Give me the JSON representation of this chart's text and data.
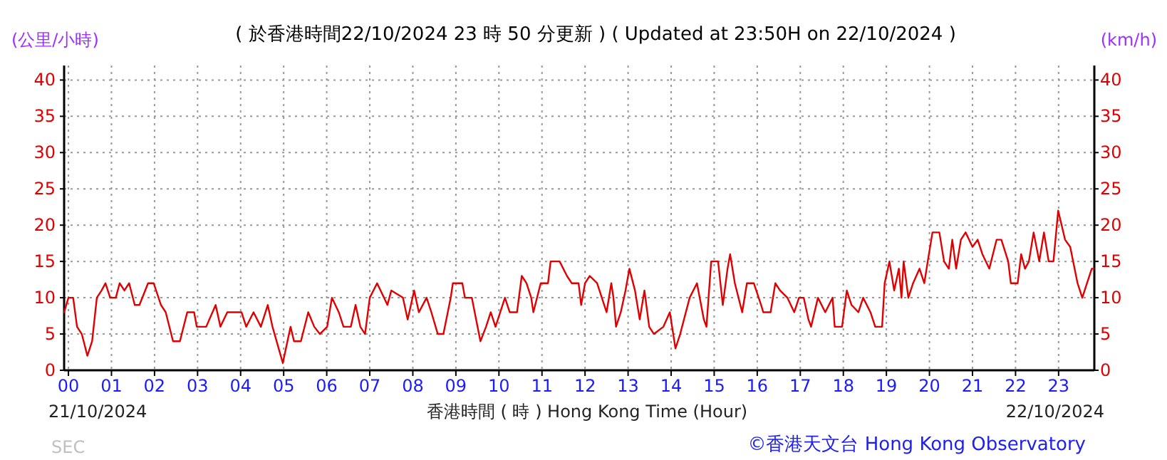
{
  "chart_data": {
    "type": "line",
    "title": "( 於香港時間22/10/2024 23 時 50 分更新 ) ( Updated at 23:50H on 22/10/2024 )",
    "ylabel": "(公里/小時)",
    "y2label": "(km/h)",
    "xlabel": "香港時間 ( 時 ) Hong Kong Time (Hour)",
    "annotations": [
      "21/10/2024",
      "22/10/2024",
      "SEC",
      "©香港天文台 Hong Kong Observatory"
    ],
    "xlim": [
      -0.1,
      23.83
    ],
    "ylim": [
      0,
      42
    ],
    "y2lim": [
      0,
      42
    ],
    "xticks": [
      {
        "value": 0,
        "label": "00"
      },
      {
        "value": 1,
        "label": "01"
      },
      {
        "value": 2,
        "label": "02"
      },
      {
        "value": 3,
        "label": "03"
      },
      {
        "value": 4,
        "label": "04"
      },
      {
        "value": 5,
        "label": "05"
      },
      {
        "value": 6,
        "label": "06"
      },
      {
        "value": 7,
        "label": "07"
      },
      {
        "value": 8,
        "label": "08"
      },
      {
        "value": 9,
        "label": "09"
      },
      {
        "value": 10,
        "label": "10"
      },
      {
        "value": 11,
        "label": "11"
      },
      {
        "value": 12,
        "label": "12"
      },
      {
        "value": 13,
        "label": "13"
      },
      {
        "value": 14,
        "label": "14"
      },
      {
        "value": 15,
        "label": "15"
      },
      {
        "value": 16,
        "label": "16"
      },
      {
        "value": 17,
        "label": "17"
      },
      {
        "value": 18,
        "label": "18"
      },
      {
        "value": 19,
        "label": "19"
      },
      {
        "value": 20,
        "label": "20"
      },
      {
        "value": 21,
        "label": "21"
      },
      {
        "value": 22,
        "label": "22"
      },
      {
        "value": 23,
        "label": "23"
      }
    ],
    "yticks": [
      0,
      5,
      10,
      15,
      20,
      25,
      30,
      35,
      40
    ],
    "y2ticks": [
      0,
      5,
      10,
      15,
      20,
      25,
      30,
      35,
      40
    ],
    "grid": true,
    "marker": "none",
    "line_style": "solid",
    "series": [
      {
        "color": "#e00000",
        "x": [
          -0.1,
          0,
          0.11,
          0.2,
          0.31,
          0.44,
          0.55,
          0.66,
          0.77,
          0.86,
          0.97,
          1.1,
          1.19,
          1.3,
          1.41,
          1.54,
          1.65,
          1.85,
          1.98,
          2.15,
          2.26,
          2.43,
          2.59,
          2.76,
          2.92,
          2.98,
          3.2,
          3.42,
          3.53,
          3.69,
          3.86,
          4.02,
          4.13,
          4.3,
          4.47,
          4.63,
          4.74,
          4.98,
          5.16,
          5.24,
          5.4,
          5.57,
          5.71,
          5.84,
          6.01,
          6.12,
          6.28,
          6.39,
          6.56,
          6.67,
          6.78,
          6.89,
          7.0,
          7.17,
          7.33,
          7.41,
          7.5,
          7.77,
          7.88,
          8.03,
          8.14,
          8.32,
          8.43,
          8.58,
          8.71,
          8.88,
          8.93,
          9.15,
          9.21,
          9.37,
          9.57,
          9.7,
          9.81,
          9.92,
          10.14,
          10.25,
          10.42,
          10.53,
          10.64,
          10.75,
          10.8,
          10.97,
          11.14,
          11.2,
          11.41,
          11.58,
          11.69,
          11.85,
          11.91,
          12.0,
          12.11,
          12.28,
          12.39,
          12.5,
          12.61,
          12.66,
          12.72,
          12.83,
          12.94,
          13.03,
          13.16,
          13.27,
          13.38,
          13.49,
          13.6,
          13.82,
          13.97,
          14.1,
          14.21,
          14.43,
          14.6,
          14.76,
          14.82,
          14.93,
          15.09,
          15.2,
          15.31,
          15.37,
          15.48,
          15.65,
          15.76,
          15.92,
          16.09,
          16.14,
          16.31,
          16.42,
          16.53,
          16.7,
          16.86,
          16.97,
          17.08,
          17.19,
          17.25,
          17.41,
          17.58,
          17.75,
          17.8,
          17.97,
          18.08,
          18.19,
          18.35,
          18.46,
          18.63,
          18.74,
          18.9,
          18.96,
          19.07,
          19.18,
          19.29,
          19.35,
          19.4,
          19.51,
          19.62,
          19.77,
          19.88,
          19.96,
          20.07,
          20.23,
          20.34,
          20.45,
          20.53,
          20.62,
          20.73,
          20.84,
          21.0,
          21.12,
          21.23,
          21.39,
          21.56,
          21.67,
          21.83,
          21.89,
          22.05,
          22.13,
          22.22,
          22.31,
          22.42,
          22.55,
          22.66,
          22.77,
          22.88,
          22.99,
          23.15,
          23.27,
          23.44,
          23.55,
          23.66,
          23.77,
          23.82
        ],
        "values": [
          8,
          10,
          10,
          6,
          5,
          2,
          4,
          10,
          11,
          12,
          10,
          10,
          12,
          11,
          12,
          9,
          9,
          12,
          12,
          9,
          8,
          4,
          4,
          8,
          8,
          6,
          6,
          9,
          6,
          8,
          8,
          8,
          6,
          8,
          6,
          9,
          6,
          1,
          6,
          4,
          4,
          8,
          6,
          5,
          6,
          10,
          8,
          6,
          6,
          9,
          6,
          5,
          10,
          12,
          10,
          9,
          11,
          10,
          7,
          11,
          8,
          10,
          8,
          5,
          5,
          10,
          12,
          12,
          10,
          10,
          4,
          6,
          8,
          6,
          10,
          8,
          8,
          13,
          12,
          10,
          8,
          12,
          12,
          15,
          15,
          13,
          12,
          12,
          9,
          12,
          13,
          12,
          10,
          8,
          12,
          10,
          6,
          8,
          11,
          14,
          11,
          7,
          11,
          6,
          5,
          6,
          8,
          3,
          5,
          10,
          12,
          7,
          6,
          15,
          15,
          9,
          14,
          16,
          12,
          8,
          12,
          12,
          9,
          8,
          8,
          12,
          11,
          10,
          8,
          10,
          10,
          7,
          6,
          10,
          8,
          10,
          6,
          6,
          11,
          9,
          8,
          10,
          8,
          6,
          6,
          12,
          15,
          11,
          14,
          10,
          15,
          10,
          12,
          14,
          12,
          15,
          19,
          19,
          15,
          14,
          18,
          14,
          18,
          19,
          17,
          18,
          16,
          14,
          18,
          18,
          15,
          12,
          12,
          16,
          14,
          15,
          19,
          15,
          19,
          15,
          15,
          22,
          18,
          17,
          12,
          10,
          12,
          14,
          14
        ]
      }
    ]
  }
}
